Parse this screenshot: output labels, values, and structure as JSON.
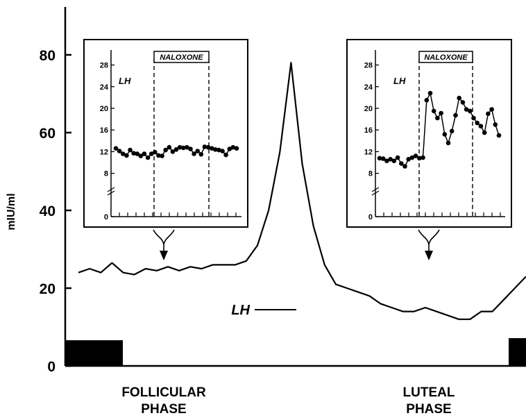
{
  "colors": {
    "ink": "#000000",
    "background": "#ffffff"
  },
  "chart_data": [
    {
      "type": "line",
      "ylabel": "mIU/ml",
      "ylim": [
        0,
        90
      ],
      "yticks": [
        0,
        20,
        40,
        60,
        80
      ],
      "phases": [
        "FOLLICULAR\nPHASE",
        "LUTEAL\nPHASE"
      ],
      "series": [
        {
          "name": "LH",
          "values": [
            24,
            25,
            24,
            26.5,
            24,
            23.5,
            25,
            24.5,
            25.5,
            24.5,
            25.5,
            25,
            26,
            26,
            26,
            27,
            31,
            40,
            55,
            78,
            52,
            36,
            26,
            21,
            20,
            19,
            18,
            16,
            15,
            14,
            14,
            15,
            14,
            13,
            12,
            12,
            14,
            14,
            17,
            20,
            23
          ]
        }
      ]
    },
    {
      "type": "line",
      "title": "NALOXONE",
      "ylabel": "LH",
      "ylim": [
        0,
        30
      ],
      "yticks": [
        0,
        8,
        12,
        16,
        20,
        24,
        28
      ],
      "series": [
        {
          "name": "LH",
          "values": [
            12.6,
            12.1,
            11.6,
            11.3,
            12.3,
            11.7,
            11.6,
            11.2,
            11.6,
            10.9,
            11.6,
            11.9,
            11.3,
            11.2,
            12.3,
            12.8,
            12.0,
            12.4,
            12.8,
            12.7,
            12.8,
            12.5,
            11.6,
            12.1,
            11.5,
            12.9,
            12.8,
            12.6,
            12.4,
            12.3,
            12.1,
            11.4,
            12.5,
            12.8,
            12.6
          ]
        }
      ]
    },
    {
      "type": "line",
      "title": "NALOXONE",
      "ylabel": "LH",
      "ylim": [
        0,
        30
      ],
      "yticks": [
        0,
        8,
        12,
        16,
        20,
        24,
        28
      ],
      "series": [
        {
          "name": "LH",
          "values": [
            10.8,
            10.7,
            10.3,
            10.6,
            10.3,
            10.9,
            9.8,
            9.3,
            10.6,
            10.9,
            11.2,
            10.8,
            10.9,
            21.5,
            22.8,
            19.5,
            18.2,
            19.1,
            15.2,
            13.6,
            15.8,
            18.7,
            21.9,
            21.1,
            19.8,
            19.5,
            18.2,
            17.3,
            16.7,
            15.5,
            19.0,
            19.8,
            17.0,
            15.0
          ]
        }
      ]
    }
  ]
}
